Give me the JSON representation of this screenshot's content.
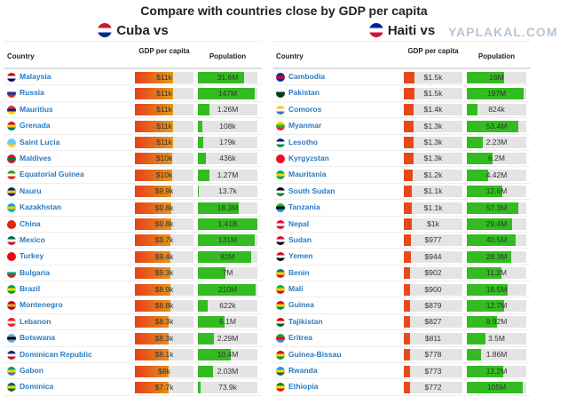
{
  "title": "Compare with countries close by GDP per capita",
  "watermark": "YAPLAKAL.COM",
  "colors": {
    "link": "#2a7ac0",
    "pop": "#33bb22",
    "gdp_low": "#e8491a",
    "gdp_high": "#d8c820"
  },
  "headers": {
    "country": "Country",
    "gdp": "GDP per capita",
    "population": "Population"
  },
  "panels": [
    {
      "title": "Cuba vs",
      "flag": [
        "#cf142b",
        "#ffffff",
        "#002a8f"
      ],
      "rows": [
        {
          "name": "Malaysia",
          "flag": [
            "#cc0001",
            "#fff",
            "#010066"
          ],
          "gdp": "$11k",
          "gdp_fill": 0.65,
          "pop": "31.6M",
          "pop_fill": 0.78
        },
        {
          "name": "Russia",
          "flag": [
            "#fff",
            "#0039a6",
            "#d52b1e"
          ],
          "gdp": "$11k",
          "gdp_fill": 0.65,
          "pop": "147M",
          "pop_fill": 0.95
        },
        {
          "name": "Mauritius",
          "flag": [
            "#ea2839",
            "#1a206d",
            "#ffd500"
          ],
          "gdp": "$11k",
          "gdp_fill": 0.65,
          "pop": "1.26M",
          "pop_fill": 0.2
        },
        {
          "name": "Grenada",
          "flag": [
            "#ce1126",
            "#fcd116",
            "#007a5e"
          ],
          "gdp": "$11k",
          "gdp_fill": 0.65,
          "pop": "108k",
          "pop_fill": 0.07
        },
        {
          "name": "Saint Lucia",
          "flag": [
            "#66ccff",
            "#66ccff",
            "#fcd116"
          ],
          "gdp": "$11k",
          "gdp_fill": 0.65,
          "pop": "179k",
          "pop_fill": 0.09
        },
        {
          "name": "Maldives",
          "flag": [
            "#d21034",
            "#007e3a",
            "#d21034"
          ],
          "gdp": "$10k",
          "gdp_fill": 0.63,
          "pop": "436k",
          "pop_fill": 0.13
        },
        {
          "name": "Equatorial Guinea",
          "flag": [
            "#3e9a00",
            "#fff",
            "#e32118"
          ],
          "gdp": "$10k",
          "gdp_fill": 0.63,
          "pop": "1.27M",
          "pop_fill": 0.2
        },
        {
          "name": "Nauru",
          "flag": [
            "#002b7f",
            "#ffc61e",
            "#002b7f"
          ],
          "gdp": "$9.9k",
          "gdp_fill": 0.62,
          "pop": "13.7k",
          "pop_fill": 0.01
        },
        {
          "name": "Kazakhstan",
          "flag": [
            "#00afca",
            "#fec50c",
            "#00afca"
          ],
          "gdp": "$9.8k",
          "gdp_fill": 0.62,
          "pop": "18.3M",
          "pop_fill": 0.68
        },
        {
          "name": "China",
          "flag": [
            "#de2910",
            "#de2910",
            "#de2910"
          ],
          "gdp": "$9.8k",
          "gdp_fill": 0.62,
          "pop": "1.41B",
          "pop_fill": 1.0
        },
        {
          "name": "Mexico",
          "flag": [
            "#006847",
            "#fff",
            "#ce1126"
          ],
          "gdp": "$9.7k",
          "gdp_fill": 0.61,
          "pop": "131M",
          "pop_fill": 0.95
        },
        {
          "name": "Turkey",
          "flag": [
            "#e30a17",
            "#e30a17",
            "#e30a17"
          ],
          "gdp": "$9.4k",
          "gdp_fill": 0.61,
          "pop": "82M",
          "pop_fill": 0.9
        },
        {
          "name": "Bulgaria",
          "flag": [
            "#fff",
            "#00966e",
            "#d62612"
          ],
          "gdp": "$9.3k",
          "gdp_fill": 0.6,
          "pop": "7M",
          "pop_fill": 0.47
        },
        {
          "name": "Brazil",
          "flag": [
            "#009c3b",
            "#ffdf00",
            "#009c3b"
          ],
          "gdp": "$8.9k",
          "gdp_fill": 0.6,
          "pop": "210M",
          "pop_fill": 0.97
        },
        {
          "name": "Montenegro",
          "flag": [
            "#c40308",
            "#d3ae3b",
            "#c40308"
          ],
          "gdp": "$8.8k",
          "gdp_fill": 0.6,
          "pop": "622k",
          "pop_fill": 0.16
        },
        {
          "name": "Lebanon",
          "flag": [
            "#ed1c24",
            "#fff",
            "#ed1c24"
          ],
          "gdp": "$8.3k",
          "gdp_fill": 0.58,
          "pop": "6.1M",
          "pop_fill": 0.45
        },
        {
          "name": "Botswana",
          "flag": [
            "#6da9d2",
            "#000",
            "#6da9d2"
          ],
          "gdp": "$8.3k",
          "gdp_fill": 0.58,
          "pop": "2.29M",
          "pop_fill": 0.27
        },
        {
          "name": "Dominican Republic",
          "flag": [
            "#002d62",
            "#fff",
            "#ce1126"
          ],
          "gdp": "$8.1k",
          "gdp_fill": 0.58,
          "pop": "10.4M",
          "pop_fill": 0.55
        },
        {
          "name": "Gabon",
          "flag": [
            "#009e60",
            "#fcd116",
            "#3a75c4"
          ],
          "gdp": "$8k",
          "gdp_fill": 0.57,
          "pop": "2.03M",
          "pop_fill": 0.25
        },
        {
          "name": "Dominica",
          "flag": [
            "#006b3f",
            "#fcd116",
            "#006b3f"
          ],
          "gdp": "$7.7k",
          "gdp_fill": 0.57,
          "pop": "73.9k",
          "pop_fill": 0.04
        }
      ]
    },
    {
      "title": "Haiti vs",
      "flag": [
        "#00209f",
        "#ffffff",
        "#d21034"
      ],
      "rows": [
        {
          "name": "Cambodia",
          "flag": [
            "#032ea1",
            "#e00025",
            "#032ea1"
          ],
          "gdp": "$1.5k",
          "gdp_fill": 0.18,
          "pop": "16M",
          "pop_fill": 0.63
        },
        {
          "name": "Pakistan",
          "flag": [
            "#fff",
            "#01411c",
            "#01411c"
          ],
          "gdp": "$1.5k",
          "gdp_fill": 0.18,
          "pop": "197M",
          "pop_fill": 0.96
        },
        {
          "name": "Comoros",
          "flag": [
            "#ffc61e",
            "#fff",
            "#3a75c4"
          ],
          "gdp": "$1.4k",
          "gdp_fill": 0.17,
          "pop": "824k",
          "pop_fill": 0.18
        },
        {
          "name": "Myanmar",
          "flag": [
            "#fecb00",
            "#34b233",
            "#ea2839"
          ],
          "gdp": "$1.3k",
          "gdp_fill": 0.16,
          "pop": "53.4M",
          "pop_fill": 0.87
        },
        {
          "name": "Lesotho",
          "flag": [
            "#00209f",
            "#fff",
            "#009543"
          ],
          "gdp": "$1.3k",
          "gdp_fill": 0.16,
          "pop": "2.23M",
          "pop_fill": 0.27
        },
        {
          "name": "Kyrgyzstan",
          "flag": [
            "#e8112d",
            "#e8112d",
            "#e8112d"
          ],
          "gdp": "$1.3k",
          "gdp_fill": 0.16,
          "pop": "6.2M",
          "pop_fill": 0.44
        },
        {
          "name": "Mauritania",
          "flag": [
            "#00a95c",
            "#ffd700",
            "#00a95c"
          ],
          "gdp": "$1.2k",
          "gdp_fill": 0.15,
          "pop": "4.42M",
          "pop_fill": 0.36
        },
        {
          "name": "South Sudan",
          "flag": [
            "#000",
            "#fff",
            "#078930"
          ],
          "gdp": "$1.1k",
          "gdp_fill": 0.14,
          "pop": "12.6M",
          "pop_fill": 0.6
        },
        {
          "name": "Tanzania",
          "flag": [
            "#1eb53a",
            "#000",
            "#00a3dd"
          ],
          "gdp": "$1.1k",
          "gdp_fill": 0.14,
          "pop": "57.3M",
          "pop_fill": 0.87
        },
        {
          "name": "Nepal",
          "flag": [
            "#dc143c",
            "#fff",
            "#dc143c"
          ],
          "gdp": "$1k",
          "gdp_fill": 0.13,
          "pop": "29.4M",
          "pop_fill": 0.76
        },
        {
          "name": "Sudan",
          "flag": [
            "#d21034",
            "#fff",
            "#000"
          ],
          "gdp": "$977",
          "gdp_fill": 0.12,
          "pop": "40.5M",
          "pop_fill": 0.82
        },
        {
          "name": "Yemen",
          "flag": [
            "#ce1126",
            "#fff",
            "#000"
          ],
          "gdp": "$944",
          "gdp_fill": 0.12,
          "pop": "28.3M",
          "pop_fill": 0.75
        },
        {
          "name": "Benin",
          "flag": [
            "#008751",
            "#fcd116",
            "#e8112d"
          ],
          "gdp": "$902",
          "gdp_fill": 0.11,
          "pop": "11.2M",
          "pop_fill": 0.58
        },
        {
          "name": "Mali",
          "flag": [
            "#14b53a",
            "#fcd116",
            "#ce1126"
          ],
          "gdp": "$900",
          "gdp_fill": 0.11,
          "pop": "18.5M",
          "pop_fill": 0.68
        },
        {
          "name": "Guinea",
          "flag": [
            "#ce1126",
            "#fcd116",
            "#009460"
          ],
          "gdp": "$879",
          "gdp_fill": 0.11,
          "pop": "12.7M",
          "pop_fill": 0.62
        },
        {
          "name": "Tajikistan",
          "flag": [
            "#cc0000",
            "#fff",
            "#006600"
          ],
          "gdp": "$827",
          "gdp_fill": 0.1,
          "pop": "8.92M",
          "pop_fill": 0.5
        },
        {
          "name": "Eritrea",
          "flag": [
            "#12ad2b",
            "#ea0437",
            "#4189dd"
          ],
          "gdp": "$811",
          "gdp_fill": 0.1,
          "pop": "3.5M",
          "pop_fill": 0.32
        },
        {
          "name": "Guinea-Bissau",
          "flag": [
            "#ce1126",
            "#fcd116",
            "#009e49"
          ],
          "gdp": "$778",
          "gdp_fill": 0.1,
          "pop": "1.86M",
          "pop_fill": 0.24
        },
        {
          "name": "Rwanda",
          "flag": [
            "#00a1de",
            "#fad201",
            "#20603d"
          ],
          "gdp": "$773",
          "gdp_fill": 0.1,
          "pop": "12.2M",
          "pop_fill": 0.61
        },
        {
          "name": "Ethiopia",
          "flag": [
            "#078930",
            "#fcdd09",
            "#da121a"
          ],
          "gdp": "$772",
          "gdp_fill": 0.1,
          "pop": "105M",
          "pop_fill": 0.94
        }
      ]
    }
  ]
}
